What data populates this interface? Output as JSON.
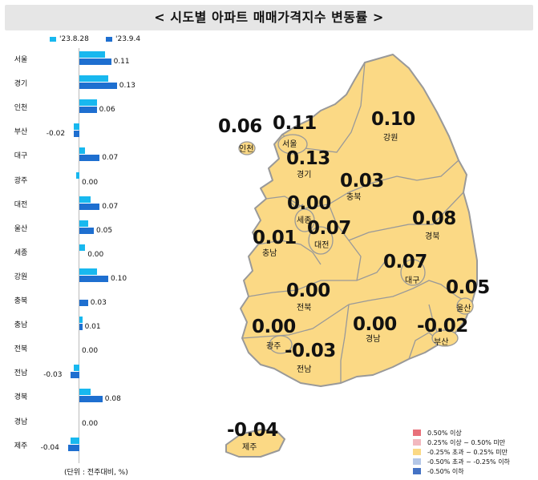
{
  "title": "< 시도별 아파트 매매가격지수 변동률 >",
  "legend_top": {
    "s1": "'23.8.28",
    "s2": "'23.9.4"
  },
  "colors": {
    "s1": "#18b8ef",
    "s2": "#1e6fd0",
    "land": "#fbd985",
    "border": "#999999"
  },
  "unit_note": "(단위 : 전주대비, %)",
  "chart_data": {
    "type": "bar",
    "orientation": "horizontal",
    "categories": [
      "서울",
      "경기",
      "인천",
      "부산",
      "대구",
      "광주",
      "대전",
      "울산",
      "세종",
      "강원",
      "충북",
      "충남",
      "전북",
      "전남",
      "경북",
      "경남",
      "제주"
    ],
    "series": [
      {
        "name": "'23.8.28",
        "values": [
          0.09,
          0.1,
          0.06,
          -0.02,
          0.02,
          -0.01,
          0.04,
          0.03,
          0.02,
          0.06,
          0.0,
          0.01,
          0.0,
          -0.02,
          0.04,
          0.0,
          -0.03
        ]
      },
      {
        "name": "'23.9.4",
        "values": [
          0.11,
          0.13,
          0.06,
          -0.02,
          0.07,
          0.0,
          0.07,
          0.05,
          0.0,
          0.1,
          0.03,
          0.01,
          0.0,
          -0.03,
          0.08,
          0.0,
          -0.04
        ]
      }
    ],
    "labels": [
      "0.11",
      "0.13",
      "0.06",
      "-0.02",
      "0.07",
      "0.00",
      "0.07",
      "0.05",
      "0.00",
      "0.10",
      "0.03",
      "0.01",
      "0.00",
      "-0.03",
      "0.08",
      "0.00",
      "-0.04"
    ]
  },
  "map_regions": [
    {
      "name": "인천",
      "value": "0.06"
    },
    {
      "name": "서울",
      "value": "0.11"
    },
    {
      "name": "강원",
      "value": "0.10"
    },
    {
      "name": "경기",
      "value": "0.13"
    },
    {
      "name": "충북",
      "value": "0.03"
    },
    {
      "name": "세종",
      "value": "0.00"
    },
    {
      "name": "경북",
      "value": "0.08"
    },
    {
      "name": "충남",
      "value": "0.01"
    },
    {
      "name": "대전",
      "value": "0.07"
    },
    {
      "name": "대구",
      "value": "0.07"
    },
    {
      "name": "울산",
      "value": "0.05"
    },
    {
      "name": "전북",
      "value": "0.00"
    },
    {
      "name": "광주",
      "value": "0.00"
    },
    {
      "name": "경남",
      "value": "0.00"
    },
    {
      "name": "부산",
      "value": "-0.02"
    },
    {
      "name": "전남",
      "value": "-0.03"
    },
    {
      "name": "제주",
      "value": "-0.04"
    }
  ],
  "map_legend": [
    {
      "label": "0.50% 이상",
      "color": "#e8707a"
    },
    {
      "label": "0.25% 이상 ~ 0.50% 미만",
      "color": "#f2b8bf"
    },
    {
      "label": "-0.25% 초과 ~ 0.25% 미만",
      "color": "#fbd985"
    },
    {
      "label": "-0.50% 초과 ~ -0.25% 이하",
      "color": "#b4c7e7"
    },
    {
      "label": "-0.50% 이하",
      "color": "#4472c4"
    }
  ]
}
